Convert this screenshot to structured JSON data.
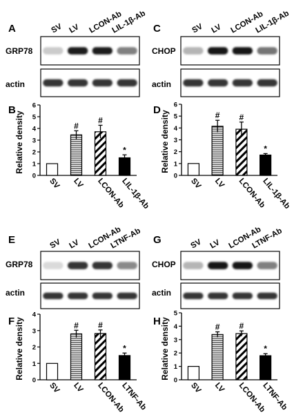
{
  "panels": [
    {
      "letter": "A",
      "row_label": "GRP78",
      "lanes": [
        "SV",
        "LV",
        "LCON-Ab",
        "LIL-1β-Ab"
      ],
      "bands": [
        0.15,
        0.95,
        0.95,
        0.5
      ]
    },
    {
      "letter": "C",
      "row_label": "CHOP",
      "lanes": [
        "SV",
        "LV",
        "LCON-Ab",
        "LIL-1β-Ab"
      ],
      "bands": [
        0.25,
        1.0,
        1.0,
        0.55
      ]
    },
    {
      "letter": "E",
      "row_label": "GRP78",
      "lanes": [
        "SV",
        "LV",
        "LCON-Ab",
        "LTNF-Ab"
      ],
      "bands": [
        0.08,
        0.85,
        0.85,
        0.45
      ]
    },
    {
      "letter": "G",
      "row_label": "CHOP",
      "lanes": [
        "SV",
        "LV",
        "LCON-Ab",
        "LTNF-Ab"
      ],
      "bands": [
        0.25,
        1.0,
        1.0,
        0.5
      ]
    }
  ],
  "loading_control": {
    "label": "actin",
    "bands": [
      0.85,
      0.85,
      0.85,
      0.85
    ]
  },
  "chart_data": [
    {
      "panel": "B",
      "type": "bar",
      "categories": [
        "SV",
        "LV",
        "LCON-Ab",
        "LIL-1β-Ab"
      ],
      "values": [
        1.0,
        3.45,
        3.72,
        1.5
      ],
      "errors": [
        0,
        0.35,
        0.55,
        0.25
      ],
      "patterns": [
        "open",
        "horizontal",
        "diagonal",
        "solid"
      ],
      "significance": [
        "",
        "#",
        "#",
        "*"
      ],
      "ylabel": "Relative density",
      "ylim": [
        0,
        6
      ],
      "yticks": [
        0,
        1,
        2,
        3,
        4,
        5,
        6
      ]
    },
    {
      "panel": "D",
      "type": "bar",
      "categories": [
        "SV",
        "LV",
        "LCON-Ab",
        "LIL-1β-Ab"
      ],
      "values": [
        1.0,
        4.15,
        3.9,
        1.72
      ],
      "errors": [
        0,
        0.5,
        0.6,
        0.12
      ],
      "patterns": [
        "open",
        "horizontal",
        "diagonal",
        "solid"
      ],
      "significance": [
        "",
        "#",
        "#",
        "*"
      ],
      "ylabel": "Relative density",
      "ylim": [
        0,
        6
      ],
      "yticks": [
        0,
        1,
        2,
        3,
        4,
        5,
        6
      ]
    },
    {
      "panel": "F",
      "type": "bar",
      "categories": [
        "SV",
        "LV",
        "LCON-Ab",
        "LTNF-Ab"
      ],
      "values": [
        1.0,
        2.8,
        2.82,
        1.48
      ],
      "errors": [
        0,
        0.22,
        0.22,
        0.15
      ],
      "patterns": [
        "open",
        "horizontal",
        "diagonal",
        "solid"
      ],
      "significance": [
        "",
        "#",
        "#",
        "*"
      ],
      "ylabel": "Relative density",
      "ylim": [
        0,
        4
      ],
      "yticks": [
        0,
        1,
        2,
        3,
        4
      ]
    },
    {
      "panel": "H",
      "type": "bar",
      "categories": [
        "SV",
        "LV",
        "LCON-Ab",
        "LTNF-Ab"
      ],
      "values": [
        1.0,
        3.38,
        3.45,
        1.8
      ],
      "errors": [
        0,
        0.2,
        0.2,
        0.15
      ],
      "patterns": [
        "open",
        "horizontal",
        "diagonal",
        "solid"
      ],
      "significance": [
        "",
        "#",
        "#",
        "*"
      ],
      "ylabel": "Relative density",
      "ylim": [
        0,
        5
      ],
      "yticks": [
        0,
        1,
        2,
        3,
        4,
        5
      ]
    }
  ]
}
